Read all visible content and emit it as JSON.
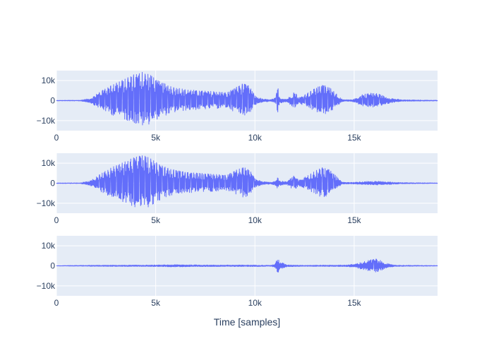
{
  "chart_data": {
    "type": "line",
    "xlabel": "Time [samples]",
    "x_range": [
      0,
      19200
    ],
    "y_range": [
      -15000,
      15000
    ],
    "x_ticks": [
      0,
      5000,
      10000,
      15000
    ],
    "x_tick_labels": [
      "0",
      "5k",
      "10k",
      "15k"
    ],
    "y_ticks": [
      10000,
      0,
      -10000
    ],
    "y_tick_labels": [
      "10k",
      "0",
      "−10k"
    ],
    "grid": true,
    "line_color": "#636efa",
    "plot_bgcolor": "#e5ecf6",
    "panels": [
      {
        "name": "",
        "envelope": [
          [
            0,
            150
          ],
          [
            1200,
            200
          ],
          [
            1700,
            1200
          ],
          [
            2200,
            4500
          ],
          [
            2800,
            8000
          ],
          [
            3400,
            10500
          ],
          [
            3900,
            13000
          ],
          [
            4300,
            14500
          ],
          [
            4700,
            13000
          ],
          [
            5200,
            9500
          ],
          [
            5800,
            7000
          ],
          [
            6500,
            5500
          ],
          [
            7200,
            5000
          ],
          [
            8000,
            4500
          ],
          [
            8600,
            4000
          ],
          [
            9000,
            6500
          ],
          [
            9400,
            8500
          ],
          [
            9700,
            7500
          ],
          [
            10000,
            2500
          ],
          [
            10400,
            800
          ],
          [
            10800,
            500
          ],
          [
            11050,
            1500
          ],
          [
            11150,
            7500
          ],
          [
            11250,
            1500
          ],
          [
            11600,
            800
          ],
          [
            11800,
            2500
          ],
          [
            12000,
            4500
          ],
          [
            12200,
            1500
          ],
          [
            12600,
            3500
          ],
          [
            13000,
            6000
          ],
          [
            13400,
            8000
          ],
          [
            13800,
            6500
          ],
          [
            14100,
            3500
          ],
          [
            14400,
            500
          ],
          [
            14800,
            400
          ],
          [
            15000,
            800
          ],
          [
            15400,
            3000
          ],
          [
            15800,
            3800
          ],
          [
            16200,
            3500
          ],
          [
            16600,
            2000
          ],
          [
            17000,
            1000
          ],
          [
            17400,
            400
          ],
          [
            19200,
            200
          ]
        ]
      },
      {
        "name": "",
        "envelope": [
          [
            0,
            150
          ],
          [
            1200,
            200
          ],
          [
            1700,
            1200
          ],
          [
            2200,
            4500
          ],
          [
            2800,
            8000
          ],
          [
            3400,
            10500
          ],
          [
            3900,
            13000
          ],
          [
            4300,
            14500
          ],
          [
            4700,
            13000
          ],
          [
            5200,
            9500
          ],
          [
            5800,
            7000
          ],
          [
            6500,
            5500
          ],
          [
            7200,
            5000
          ],
          [
            8000,
            4500
          ],
          [
            8600,
            4000
          ],
          [
            9000,
            6500
          ],
          [
            9400,
            8000
          ],
          [
            9700,
            7000
          ],
          [
            10000,
            2500
          ],
          [
            10400,
            800
          ],
          [
            10800,
            500
          ],
          [
            11050,
            1500
          ],
          [
            11150,
            3500
          ],
          [
            11250,
            1200
          ],
          [
            11600,
            800
          ],
          [
            11800,
            2500
          ],
          [
            12000,
            4000
          ],
          [
            12200,
            1500
          ],
          [
            12600,
            3500
          ],
          [
            13000,
            6000
          ],
          [
            13400,
            8000
          ],
          [
            13800,
            6500
          ],
          [
            14100,
            3500
          ],
          [
            14400,
            500
          ],
          [
            14800,
            400
          ],
          [
            15500,
            800
          ],
          [
            16200,
            1000
          ],
          [
            16800,
            700
          ],
          [
            17400,
            300
          ],
          [
            19200,
            150
          ]
        ]
      },
      {
        "name": "",
        "envelope": [
          [
            0,
            100
          ],
          [
            2000,
            300
          ],
          [
            5000,
            400
          ],
          [
            6000,
            600
          ],
          [
            8000,
            400
          ],
          [
            10000,
            400
          ],
          [
            10800,
            300
          ],
          [
            11000,
            900
          ],
          [
            11150,
            4000
          ],
          [
            11300,
            2000
          ],
          [
            11600,
            500
          ],
          [
            12500,
            300
          ],
          [
            14500,
            400
          ],
          [
            15000,
            800
          ],
          [
            15400,
            2000
          ],
          [
            15800,
            3000
          ],
          [
            16100,
            3500
          ],
          [
            16500,
            2000
          ],
          [
            16800,
            700
          ],
          [
            17200,
            300
          ],
          [
            19200,
            150
          ]
        ]
      }
    ]
  }
}
